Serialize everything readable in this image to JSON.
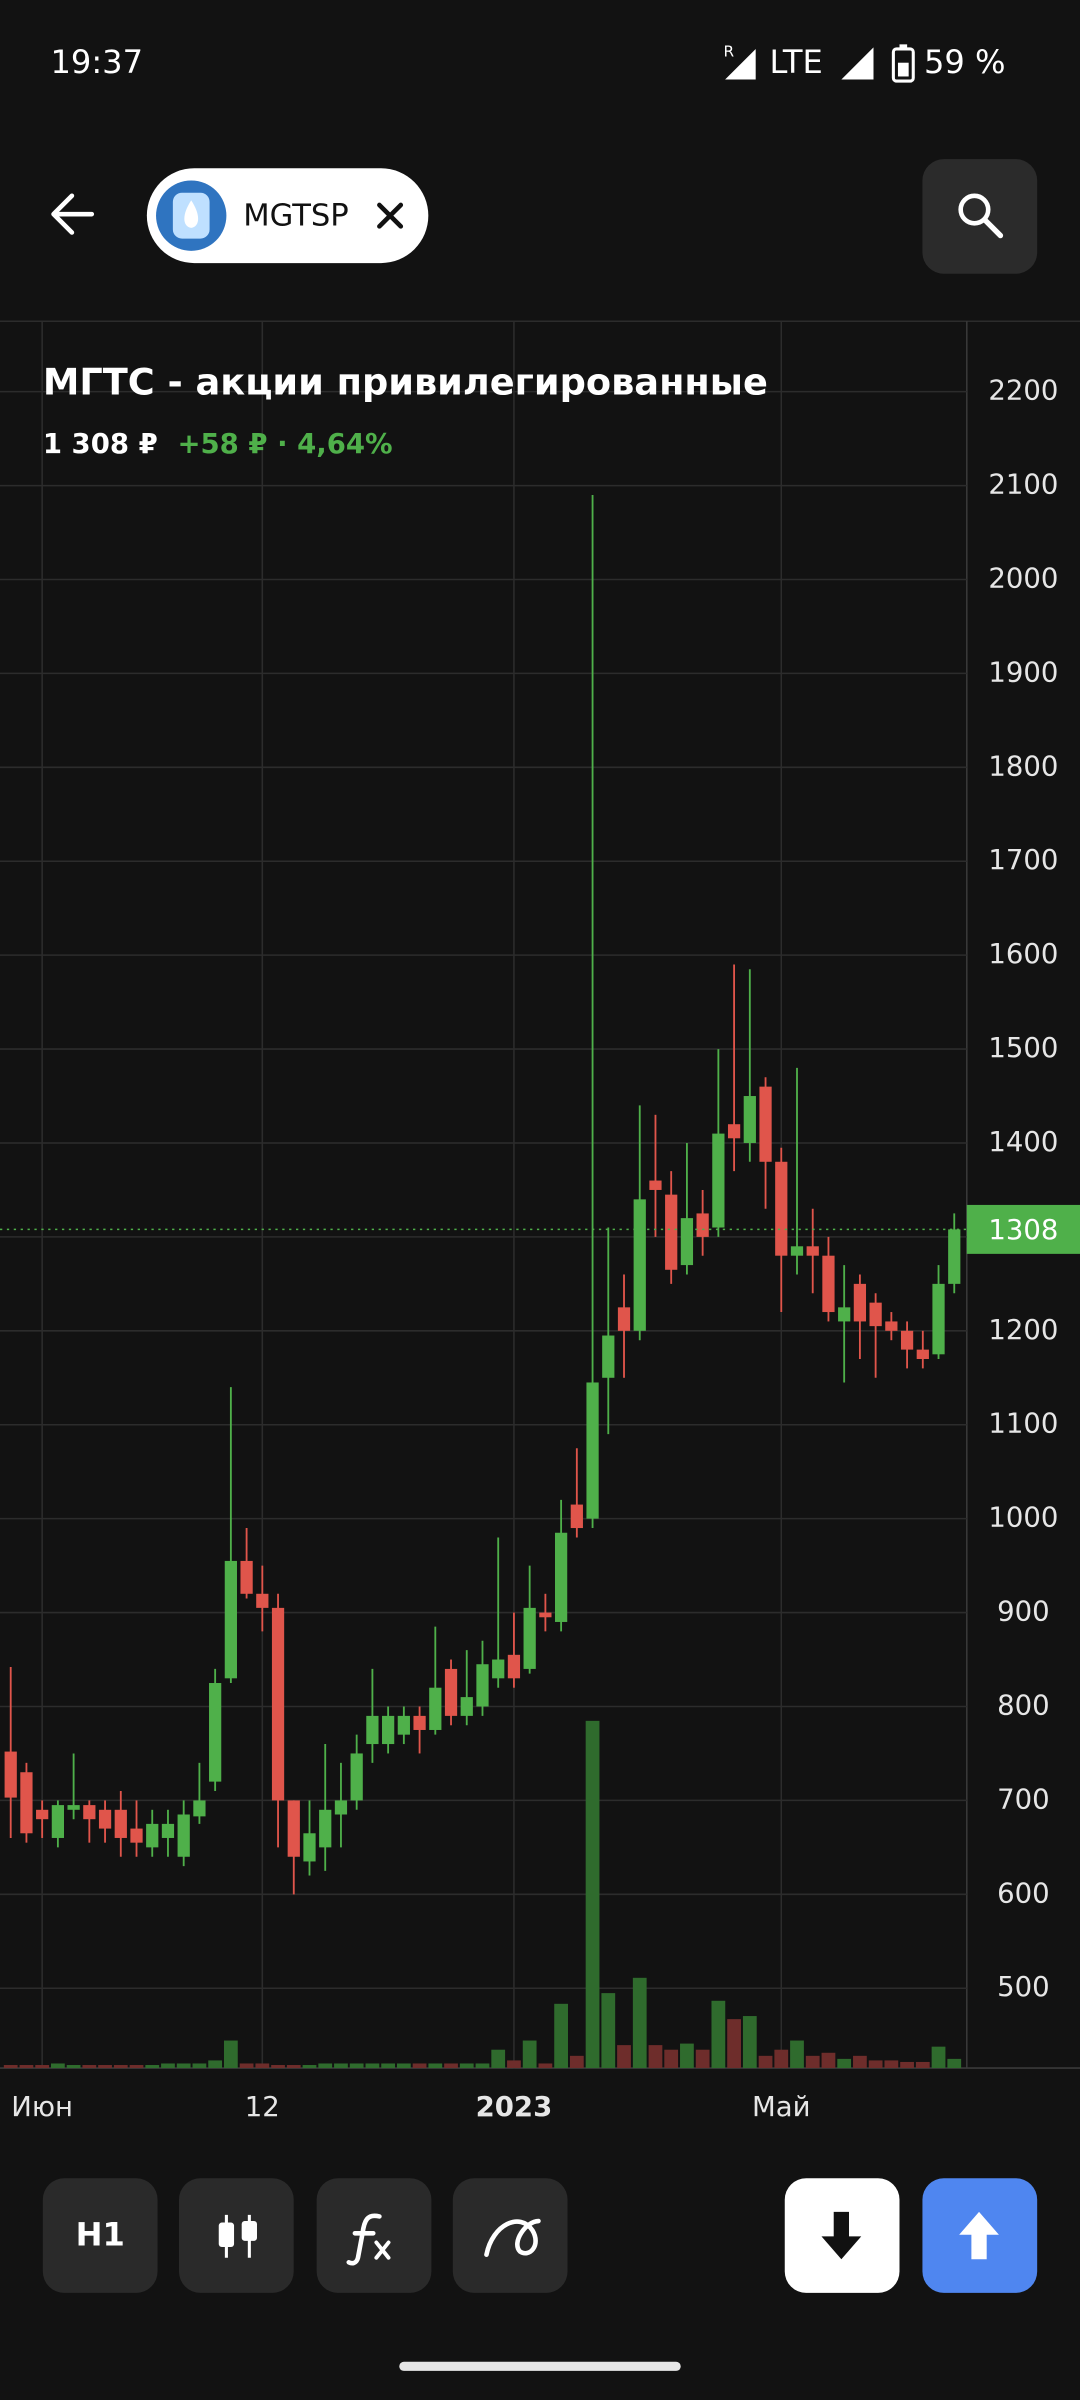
{
  "status_bar": {
    "time": "19:37",
    "roaming": "R",
    "network": "LTE",
    "battery": "59 %"
  },
  "header": {
    "ticker": "MGTSP"
  },
  "chart_data": {
    "type": "candlestick",
    "title": "МГТС - акции привилегированные",
    "price": "1 308 ₽",
    "change": "+58 ₽ · 4,64%",
    "categories": [
      null,
      null,
      "Июн",
      null,
      null,
      null,
      null,
      null,
      null,
      null,
      null,
      null,
      null,
      null,
      null,
      null,
      "12",
      null,
      null,
      null,
      null,
      null,
      null,
      null,
      null,
      null,
      null,
      null,
      null,
      null,
      null,
      null,
      "2023",
      null,
      null,
      null,
      null,
      null,
      null,
      null,
      null,
      null,
      null,
      null,
      null,
      null,
      null,
      null,
      null,
      "Май",
      null,
      null,
      null,
      null,
      null,
      null,
      null,
      null,
      null,
      null,
      null
    ],
    "open": [
      752,
      730,
      690,
      660,
      690,
      695,
      690,
      690,
      670,
      650,
      660,
      640,
      683,
      720,
      830,
      955,
      920,
      905,
      700,
      635,
      650,
      685,
      700,
      760,
      760,
      770,
      790,
      775,
      840,
      790,
      800,
      830,
      855,
      840,
      900,
      890,
      1015,
      1000,
      1150,
      1225,
      1200,
      1360,
      1345,
      1270,
      1325,
      1310,
      1420,
      1400,
      1460,
      1380,
      1280,
      1290,
      1280,
      1210,
      1250,
      1230,
      1210,
      1200,
      1180,
      1175,
      1250
    ],
    "high": [
      842,
      740,
      700,
      700,
      750,
      700,
      700,
      710,
      700,
      690,
      690,
      700,
      740,
      840,
      1140,
      990,
      950,
      920,
      700,
      700,
      760,
      740,
      770,
      840,
      800,
      800,
      800,
      885,
      850,
      860,
      870,
      980,
      900,
      950,
      920,
      1020,
      1075,
      2090,
      1310,
      1260,
      1440,
      1430,
      1370,
      1400,
      1350,
      1500,
      1590,
      1585,
      1470,
      1395,
      1480,
      1330,
      1300,
      1270,
      1260,
      1240,
      1220,
      1210,
      1200,
      1270,
      1325
    ],
    "low": [
      660,
      655,
      660,
      650,
      680,
      655,
      655,
      640,
      640,
      640,
      640,
      630,
      675,
      710,
      825,
      915,
      880,
      650,
      600,
      620,
      625,
      650,
      690,
      740,
      750,
      760,
      750,
      770,
      780,
      780,
      790,
      820,
      820,
      835,
      880,
      880,
      980,
      990,
      1090,
      1150,
      1190,
      1300,
      1250,
      1260,
      1280,
      1300,
      1370,
      1380,
      1330,
      1220,
      1260,
      1240,
      1210,
      1145,
      1170,
      1150,
      1190,
      1160,
      1160,
      1170,
      1240
    ],
    "close": [
      703,
      665,
      680,
      695,
      695,
      680,
      670,
      660,
      655,
      675,
      675,
      685,
      700,
      825,
      955,
      920,
      905,
      700,
      640,
      665,
      690,
      700,
      750,
      790,
      790,
      790,
      775,
      820,
      790,
      810,
      845,
      850,
      830,
      905,
      895,
      985,
      990,
      1145,
      1195,
      1200,
      1340,
      1350,
      1265,
      1320,
      1300,
      1410,
      1405,
      1450,
      1380,
      1280,
      1290,
      1280,
      1220,
      1225,
      1210,
      1205,
      1200,
      1180,
      1170,
      1250,
      1308
    ],
    "volume": [
      2,
      2,
      2,
      3,
      2,
      2,
      2,
      2,
      2,
      2,
      3,
      3,
      3,
      5,
      18,
      3,
      3,
      2,
      2,
      2,
      3,
      3,
      3,
      3,
      3,
      3,
      3,
      3,
      3,
      3,
      3,
      12,
      5,
      18,
      3,
      42,
      8,
      227,
      49,
      15,
      59,
      15,
      12,
      16,
      12,
      44,
      32,
      34,
      8,
      12,
      18,
      8,
      10,
      6,
      8,
      5,
      5,
      4,
      4,
      14,
      6
    ],
    "ylim": [
      415,
      2275
    ],
    "yticks": [
      500,
      600,
      700,
      800,
      900,
      1000,
      1100,
      1200,
      1300,
      1400,
      1500,
      1600,
      1700,
      1800,
      1900,
      2000,
      2100,
      2200
    ],
    "last_price": 1308,
    "up_color": "#4fb04a",
    "down_color": "#e0554b",
    "up_volume_color": "#2f6b2d",
    "down_volume_color": "#6e2d2b",
    "grid": true
  },
  "toolbar": {
    "interval": "H1"
  }
}
